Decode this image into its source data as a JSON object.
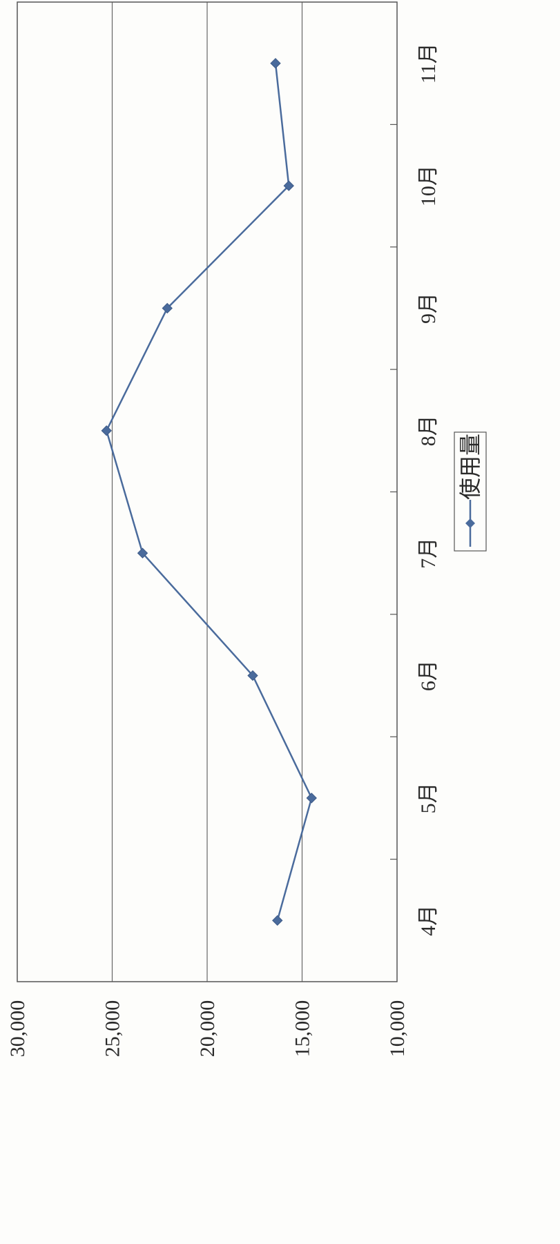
{
  "chart_data": {
    "type": "line",
    "orientation": "rotated-90-clockwise",
    "title": "",
    "xlabel": "",
    "ylabel": "",
    "categories": [
      "4月",
      "5月",
      "6月",
      "7月",
      "8月",
      "9月",
      "10月",
      "11月"
    ],
    "series": [
      {
        "name": "使用量",
        "color": "#4a6b9c",
        "marker": "diamond",
        "values": [
          16300,
          14500,
          17600,
          23400,
          25300,
          22100,
          15700,
          16400
        ]
      }
    ],
    "ylim": [
      10000,
      30000
    ],
    "yticks": [
      "10,000",
      "15,000",
      "20,000",
      "25,000",
      "30,000"
    ],
    "ytick_values": [
      10000,
      15000,
      20000,
      25000,
      30000
    ],
    "grid": true,
    "legend": "bottom"
  }
}
